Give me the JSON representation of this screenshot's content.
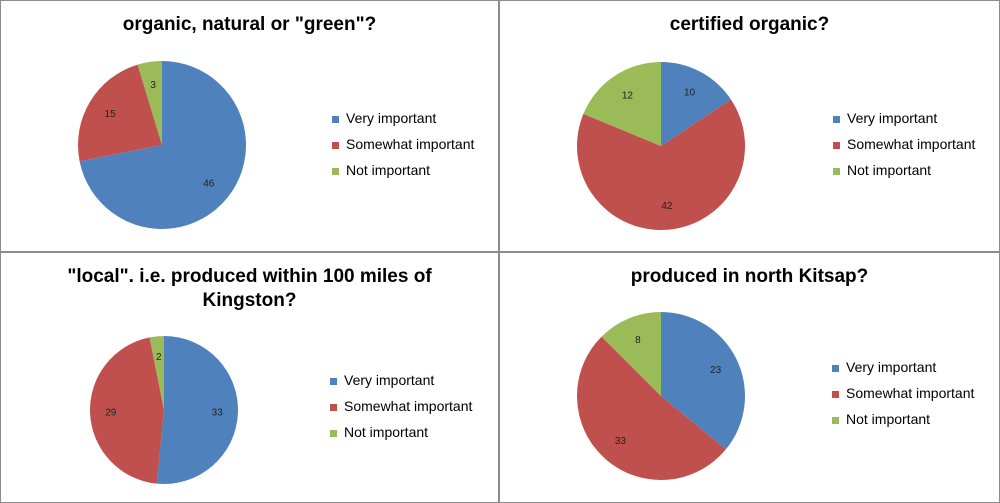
{
  "chart_data": [
    {
      "type": "pie",
      "title": "organic, natural or \"green\"?",
      "categories": [
        "Very important",
        "Somewhat important",
        "Not important"
      ],
      "values": [
        46,
        15,
        3
      ],
      "colors": [
        "#4F81BD",
        "#C0504D",
        "#9BBB59"
      ],
      "legend": "right"
    },
    {
      "type": "pie",
      "title": "certified organic?",
      "categories": [
        "Very important",
        "Somewhat important",
        "Not important"
      ],
      "values": [
        10,
        42,
        12
      ],
      "colors": [
        "#4F81BD",
        "#C0504D",
        "#9BBB59"
      ],
      "legend": "right"
    },
    {
      "type": "pie",
      "title": "\"local\". i.e. produced within 100 miles of Kingston?",
      "categories": [
        "Very important",
        "Somewhat important",
        "Not important"
      ],
      "values": [
        33,
        29,
        2
      ],
      "colors": [
        "#4F81BD",
        "#C0504D",
        "#9BBB59"
      ],
      "legend": "right"
    },
    {
      "type": "pie",
      "title": "produced in north Kitsap?",
      "categories": [
        "Very important",
        "Somewhat important",
        "Not important"
      ],
      "values": [
        23,
        33,
        8
      ],
      "colors": [
        "#4F81BD",
        "#C0504D",
        "#9BBB59"
      ],
      "legend": "right"
    }
  ]
}
